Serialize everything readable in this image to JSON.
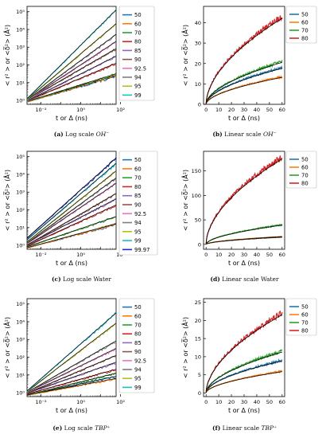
{
  "chart_data": [
    {
      "id": "a",
      "type": "line",
      "scale": "log",
      "ylabel": "< r² >  or  <δ̅²> (Å²)",
      "xlabel": "t or Δ (ns)",
      "xlim": [
        0.002,
        60
      ],
      "ylim": [
        0.6,
        200000
      ],
      "x_ticks": [
        "10⁻²",
        "10⁰",
        "10²"
      ],
      "y_ticks": [
        "10⁰",
        "10¹",
        "10²",
        "10³",
        "10⁴",
        "10⁵"
      ],
      "legend_position": "right",
      "series": [
        {
          "name": "50",
          "color": "#1f77b4",
          "values": [
            [
              0.002,
              0.8
            ],
            [
              60,
              22
            ]
          ]
        },
        {
          "name": "60",
          "color": "#ff7f0e",
          "values": [
            [
              0.002,
              0.8
            ],
            [
              60,
              25
            ]
          ]
        },
        {
          "name": "70",
          "color": "#2ca02c",
          "values": [
            [
              0.002,
              0.85
            ],
            [
              60,
              30
            ]
          ]
        },
        {
          "name": "80",
          "color": "#d62728",
          "values": [
            [
              0.002,
              0.9
            ],
            [
              60,
              120
            ]
          ]
        },
        {
          "name": "85",
          "color": "#9467bd",
          "values": [
            [
              0.002,
              0.9
            ],
            [
              60,
              300
            ]
          ]
        },
        {
          "name": "90",
          "color": "#8c564b",
          "values": [
            [
              0.002,
              1.0
            ],
            [
              60,
              800
            ]
          ]
        },
        {
          "name": "92.5",
          "color": "#e377c2",
          "values": [
            [
              0.002,
              1.0
            ],
            [
              60,
              2000
            ]
          ]
        },
        {
          "name": "94",
          "color": "#7f7f7f",
          "values": [
            [
              0.002,
              1.0
            ],
            [
              60,
              5000
            ]
          ]
        },
        {
          "name": "95",
          "color": "#bcbd22",
          "values": [
            [
              0.002,
              1.1
            ],
            [
              60,
              20000
            ]
          ]
        },
        {
          "name": "99",
          "color": "#17becf",
          "values": [
            [
              0.002,
              1.2
            ],
            [
              60,
              120000
            ]
          ]
        }
      ]
    },
    {
      "id": "b",
      "type": "line",
      "scale": "linear",
      "ylabel": "< r² >  or  <δ̅²> (Å²)",
      "xlabel": "t or Δ (ns)",
      "xlim": [
        -2,
        62
      ],
      "ylim": [
        0,
        48
      ],
      "x_ticks": [
        0,
        10,
        20,
        30,
        40,
        50,
        60
      ],
      "y_ticks": [
        0,
        10,
        20,
        30,
        40
      ],
      "legend_position": "right",
      "series": [
        {
          "name": "50",
          "color": "#1f77b4",
          "end": 18
        },
        {
          "name": "60",
          "color": "#ff7f0e",
          "end": 13.5
        },
        {
          "name": "70",
          "color": "#2ca02c",
          "end": 21
        },
        {
          "name": "80",
          "color": "#d62728",
          "end": 43
        }
      ]
    },
    {
      "id": "c",
      "type": "line",
      "scale": "log",
      "ylabel": "< r² >  or  <δ̅²> (Å²)",
      "xlabel": "t or Δ (ns)",
      "xlim": [
        0.002,
        60
      ],
      "ylim": [
        0.6,
        200000
      ],
      "x_ticks": [
        "10⁻²",
        "10⁰",
        "10²"
      ],
      "y_ticks": [
        "10⁰",
        "10¹",
        "10²",
        "10³",
        "10⁴",
        "10⁵"
      ],
      "legend_position": "right",
      "series": [
        {
          "name": "50",
          "color": "#1f77b4",
          "values": [
            [
              0.002,
              0.7
            ],
            [
              60,
              15
            ]
          ]
        },
        {
          "name": "60",
          "color": "#ff7f0e",
          "values": [
            [
              0.002,
              0.7
            ],
            [
              60,
              16
            ]
          ]
        },
        {
          "name": "70",
          "color": "#2ca02c",
          "values": [
            [
              0.002,
              0.8
            ],
            [
              60,
              40
            ]
          ]
        },
        {
          "name": "80",
          "color": "#d62728",
          "values": [
            [
              0.002,
              0.9
            ],
            [
              60,
              180
            ]
          ]
        },
        {
          "name": "85",
          "color": "#9467bd",
          "values": [
            [
              0.002,
              1.0
            ],
            [
              60,
              400
            ]
          ]
        },
        {
          "name": "90",
          "color": "#8c564b",
          "values": [
            [
              0.002,
              1.0
            ],
            [
              60,
              800
            ]
          ]
        },
        {
          "name": "92.5",
          "color": "#e377c2",
          "values": [
            [
              0.002,
              1.2
            ],
            [
              60,
              3000
            ]
          ]
        },
        {
          "name": "94",
          "color": "#7f7f7f",
          "values": [
            [
              0.002,
              1.3
            ],
            [
              60,
              6000
            ]
          ]
        },
        {
          "name": "95",
          "color": "#bcbd22",
          "values": [
            [
              0.002,
              1.5
            ],
            [
              60,
              15000
            ]
          ]
        },
        {
          "name": "99",
          "color": "#17becf",
          "values": [
            [
              0.002,
              2.0
            ],
            [
              60,
              40000
            ]
          ]
        },
        {
          "name": "99.97",
          "color": "#1f2fbf",
          "values": [
            [
              0.002,
              2.5
            ],
            [
              60,
              80000
            ]
          ]
        }
      ]
    },
    {
      "id": "d",
      "type": "line",
      "scale": "linear",
      "ylabel": "< r² >  or  <δ̅²> (Å²)",
      "xlabel": "t or Δ (ns)",
      "xlim": [
        -2,
        62
      ],
      "ylim": [
        -10,
        190
      ],
      "x_ticks": [
        0,
        10,
        20,
        30,
        40,
        50,
        60
      ],
      "y_ticks": [
        0,
        50,
        100,
        150
      ],
      "legend_position": "right",
      "series": [
        {
          "name": "50",
          "color": "#1f77b4",
          "end": 15
        },
        {
          "name": "60",
          "color": "#ff7f0e",
          "end": 16
        },
        {
          "name": "70",
          "color": "#2ca02c",
          "end": 40
        },
        {
          "name": "80",
          "color": "#d62728",
          "end": 178
        }
      ]
    },
    {
      "id": "e",
      "type": "line",
      "scale": "log",
      "ylabel": "< r² >  or  <δ̅²> (Å²)",
      "xlabel": "t or Δ (ns)",
      "xlim": [
        0.002,
        60
      ],
      "ylim": [
        0.6,
        200000
      ],
      "x_ticks": [
        "10⁻²",
        "10⁰",
        "10²"
      ],
      "y_ticks": [
        "10⁰",
        "10¹",
        "10²",
        "10³",
        "10⁴",
        "10⁵"
      ],
      "legend_position": "right",
      "series": [
        {
          "name": "50",
          "color": "#1f77b4",
          "values": [
            [
              0.002,
              0.7
            ],
            [
              60,
              8
            ]
          ]
        },
        {
          "name": "60",
          "color": "#ff7f0e",
          "values": [
            [
              0.002,
              0.7
            ],
            [
              60,
              6
            ]
          ]
        },
        {
          "name": "70",
          "color": "#2ca02c",
          "values": [
            [
              0.002,
              0.7
            ],
            [
              60,
              12
            ]
          ]
        },
        {
          "name": "80",
          "color": "#d62728",
          "values": [
            [
              0.002,
              0.8
            ],
            [
              60,
              20
            ]
          ]
        },
        {
          "name": "85",
          "color": "#9467bd",
          "values": [
            [
              0.002,
              0.9
            ],
            [
              60,
              50
            ]
          ]
        },
        {
          "name": "90",
          "color": "#8c564b",
          "values": [
            [
              0.002,
              0.9
            ],
            [
              60,
              120
            ]
          ]
        },
        {
          "name": "92.5",
          "color": "#e377c2",
          "values": [
            [
              0.002,
              1.0
            ],
            [
              60,
              300
            ]
          ]
        },
        {
          "name": "94",
          "color": "#7f7f7f",
          "values": [
            [
              0.002,
              1.0
            ],
            [
              60,
              800
            ]
          ]
        },
        {
          "name": "95",
          "color": "#bcbd22",
          "values": [
            [
              0.002,
              1.1
            ],
            [
              60,
              8000
            ]
          ]
        },
        {
          "name": "99",
          "color": "#17becf",
          "values": [
            [
              0.002,
              1.2
            ],
            [
              60,
              30000
            ]
          ]
        }
      ]
    },
    {
      "id": "f",
      "type": "line",
      "scale": "linear",
      "ylabel": "< r² >  or  <δ̅²> (Å²)",
      "xlabel": "t or Δ (ns)",
      "xlim": [
        -2,
        62
      ],
      "ylim": [
        -1,
        26
      ],
      "x_ticks": [
        0,
        10,
        20,
        30,
        40,
        50,
        60
      ],
      "y_ticks": [
        0,
        5,
        10,
        15,
        20,
        25
      ],
      "legend_position": "right",
      "series": [
        {
          "name": "50",
          "color": "#1f77b4",
          "end": 9
        },
        {
          "name": "60",
          "color": "#ff7f0e",
          "end": 6
        },
        {
          "name": "70",
          "color": "#2ca02c",
          "end": 11.5
        },
        {
          "name": "80",
          "color": "#d62728",
          "end": 22
        }
      ]
    }
  ],
  "captions": [
    {
      "id": "a",
      "label": "(a)",
      "text": "Log scale",
      "math": "OH⁻"
    },
    {
      "id": "b",
      "label": "(b)",
      "text": "Linear scale",
      "math": "OH⁻"
    },
    {
      "id": "c",
      "label": "(c)",
      "text": "Log scale Water",
      "math": ""
    },
    {
      "id": "d",
      "label": "(d)",
      "text": "Linear scale Water",
      "math": ""
    },
    {
      "id": "e",
      "label": "(e)",
      "text": "Log scale",
      "math": "TBP⁺"
    },
    {
      "id": "f",
      "label": "(f)",
      "text": "Linear scale",
      "math": "TBP⁺"
    }
  ]
}
